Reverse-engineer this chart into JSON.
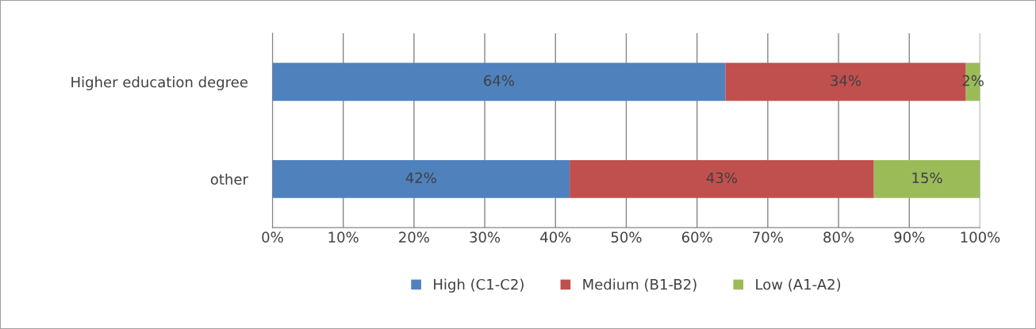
{
  "chart_data": {
    "type": "bar",
    "orientation": "horizontal",
    "stacked": true,
    "categories": [
      "Higher education degree",
      "other"
    ],
    "series": [
      {
        "name": "High (C1-C2)",
        "color": "#4f81bd",
        "values": [
          64,
          42
        ],
        "value_labels": [
          "64%",
          "42%"
        ]
      },
      {
        "name": "Medium (B1-B2)",
        "color": "#c0504d",
        "values": [
          34,
          43
        ],
        "value_labels": [
          "34%",
          "43%"
        ]
      },
      {
        "name": "Low (A1-A2)",
        "color": "#9bbb59",
        "values": [
          2,
          15
        ],
        "value_labels": [
          "2%",
          "15%"
        ]
      }
    ],
    "xlim": [
      0,
      100
    ],
    "xticks": [
      {
        "value": 0,
        "label": "0%"
      },
      {
        "value": 10,
        "label": "10%"
      },
      {
        "value": 20,
        "label": "20%"
      },
      {
        "value": 30,
        "label": "30%"
      },
      {
        "value": 40,
        "label": "40%"
      },
      {
        "value": 50,
        "label": "50%"
      },
      {
        "value": 60,
        "label": "60%"
      },
      {
        "value": 70,
        "label": "70%"
      },
      {
        "value": 80,
        "label": "80%"
      },
      {
        "value": 90,
        "label": "90%"
      },
      {
        "value": 100,
        "label": "100%"
      }
    ],
    "grid": "x",
    "legend": "bottom"
  }
}
